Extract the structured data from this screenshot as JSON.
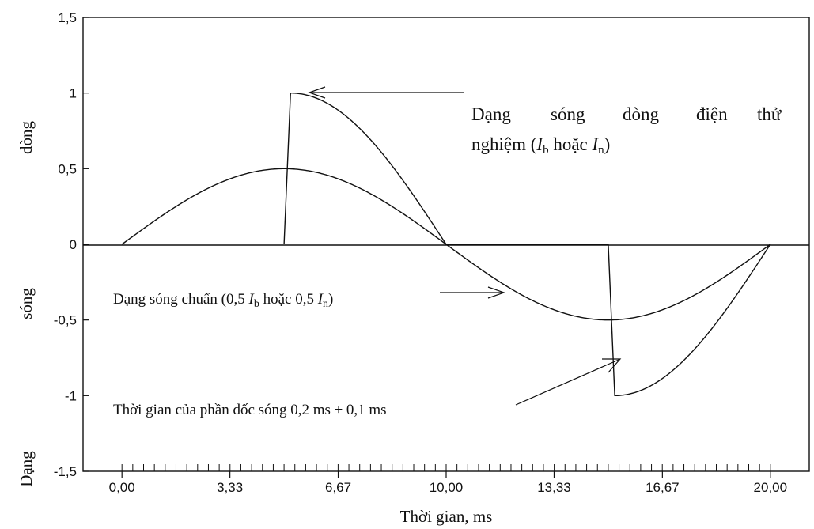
{
  "chart_data": {
    "type": "line",
    "title": "",
    "xlabel": "Thời gian, ms",
    "ylabel_words": [
      "Dạng",
      "sóng",
      "dòng"
    ],
    "xlim": [
      -1.2,
      21.2
    ],
    "ylim": [
      -1.5,
      1.5
    ],
    "x_ticks": [
      "0,00",
      "3,33",
      "6,67",
      "10,00",
      "13,33",
      "16,67",
      "20,00"
    ],
    "x_tick_values": [
      0,
      3.33,
      6.67,
      10,
      13.33,
      16.67,
      20
    ],
    "y_ticks": [
      "1,5",
      "1",
      "0,5",
      "0",
      "-0,5",
      "-1",
      "-1,5"
    ],
    "y_tick_values": [
      1.5,
      1,
      0.5,
      0,
      -0.5,
      -1,
      -1.5
    ],
    "grid": false,
    "series": [
      {
        "description_key": "reference",
        "shape": "0.5*sin(2*pi*t/20)",
        "x": [
          0,
          1,
          2,
          3,
          4,
          5,
          6,
          7,
          8,
          9,
          10,
          11,
          12,
          13,
          14,
          15,
          16,
          17,
          18,
          19,
          20
        ],
        "values": [
          0,
          0.156,
          0.294,
          0.405,
          0.476,
          0.5,
          0.476,
          0.405,
          0.294,
          0.156,
          0,
          -0.156,
          -0.294,
          -0.405,
          -0.476,
          -0.5,
          -0.476,
          -0.405,
          -0.294,
          -0.156,
          0
        ]
      },
      {
        "description_key": "test",
        "shape": "phase-cut sine, steep front 0.2 ms",
        "x": [
          5,
          5.2,
          6,
          7,
          8,
          9,
          10,
          15,
          15.2,
          16,
          17,
          18,
          19,
          20
        ],
        "values": [
          0,
          1,
          0.951,
          0.809,
          0.588,
          0.309,
          0,
          0,
          -1,
          -0.951,
          -0.809,
          -0.588,
          -0.309,
          0
        ]
      }
    ],
    "annotations": {
      "test_line1_words": [
        "Dạng",
        "sóng",
        "dòng",
        "điện",
        "thử"
      ],
      "test_line2_prefix": "nghiệm (",
      "test_I1": "I",
      "test_sub1": "b",
      "test_mid": " hoặc ",
      "test_I2": "I",
      "test_sub2": "n",
      "test_suffix": ")",
      "ref_prefix": "Dạng sóng chuẩn (0,5 ",
      "ref_I1": "I",
      "ref_sub1": "b",
      "ref_mid": " hoặc 0,5 ",
      "ref_I2": "I",
      "ref_sub2": "n",
      "ref_suffix": ")",
      "front_text": "Thời gian của phần dốc sóng 0,2 ms ± 0,1 ms"
    }
  }
}
